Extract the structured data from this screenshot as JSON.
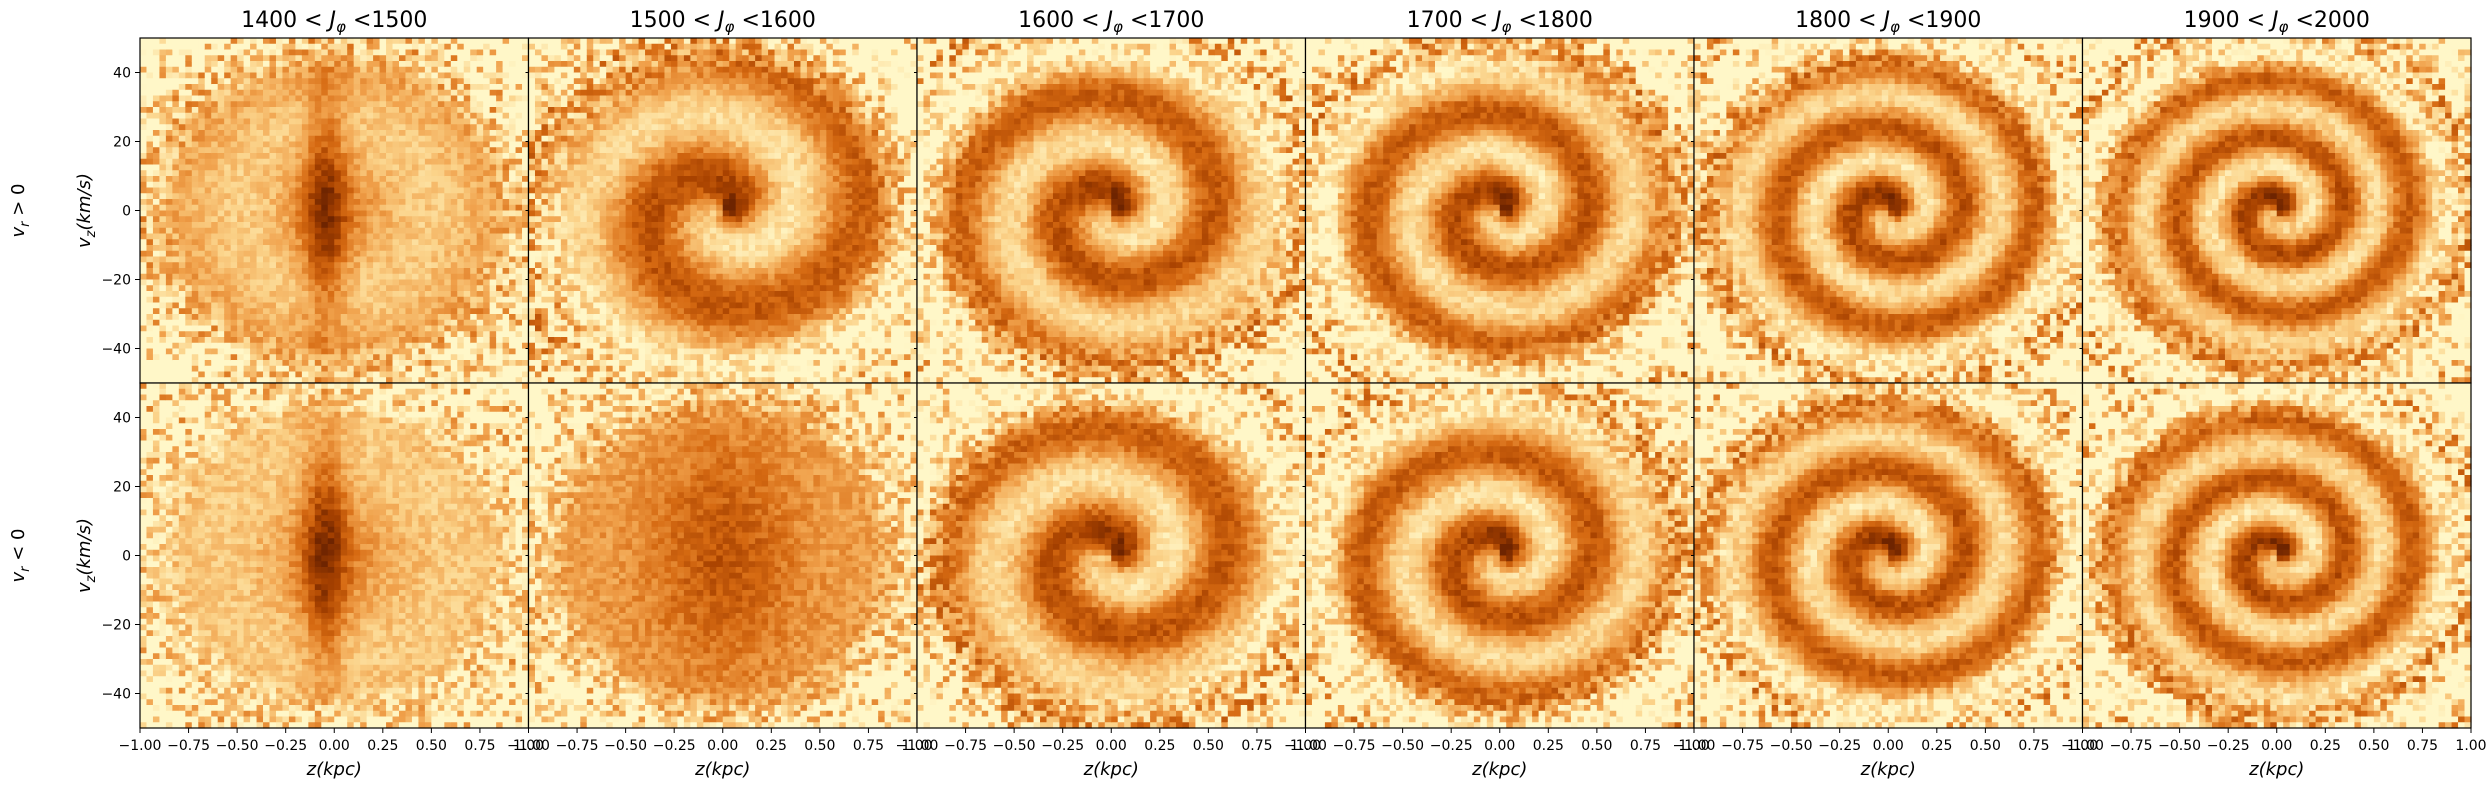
{
  "chart_data": {
    "type": "heatmap",
    "layout": {
      "rows": 2,
      "cols": 6
    },
    "column_titles": [
      "1400 < J_φ <1500",
      "1500 < J_φ <1600",
      "1600 < J_φ <1700",
      "1700 < J_φ <1800",
      "1800 < J_φ <1900",
      "1900 < J_φ <2000"
    ],
    "row_labels": [
      "v_r > 0",
      "v_r < 0"
    ],
    "xlabel": "z(kpc)",
    "ylabel": "v_z(km/s)",
    "xlim": [
      -1.0,
      1.0
    ],
    "ylim": [
      -50,
      50
    ],
    "xticks": [
      -1.0,
      -0.75,
      -0.5,
      -0.25,
      0.0,
      0.25,
      0.5,
      0.75,
      1.0
    ],
    "xtick_labels": [
      "−1.00",
      "−0.75",
      "−0.50",
      "−0.25",
      "0.00",
      "0.25",
      "0.50",
      "0.75",
      "1.00"
    ],
    "yticks": [
      40,
      20,
      0,
      -20,
      -40
    ],
    "ytick_labels": [
      "40",
      "20",
      "0",
      "−20",
      "−40"
    ],
    "colormap": [
      "#fff7c8",
      "#fbd38a",
      "#f0a04a",
      "#d66a12",
      "#a84200",
      "#6e2400"
    ],
    "panels": [
      {
        "row": 0,
        "col": 0,
        "feature": "vertical-band",
        "turns": 1.0
      },
      {
        "row": 0,
        "col": 1,
        "feature": "spiral",
        "turns": 1.3
      },
      {
        "row": 0,
        "col": 2,
        "feature": "spiral",
        "turns": 1.8
      },
      {
        "row": 0,
        "col": 3,
        "feature": "spiral",
        "turns": 2.1
      },
      {
        "row": 0,
        "col": 4,
        "feature": "spiral",
        "turns": 2.5
      },
      {
        "row": 0,
        "col": 5,
        "feature": "spiral",
        "turns": 2.8
      },
      {
        "row": 1,
        "col": 0,
        "feature": "vertical-band",
        "turns": 0.8
      },
      {
        "row": 1,
        "col": 1,
        "feature": "diffuse",
        "turns": 1.0
      },
      {
        "row": 1,
        "col": 2,
        "feature": "spiral",
        "turns": 1.6
      },
      {
        "row": 1,
        "col": 3,
        "feature": "spiral",
        "turns": 2.0
      },
      {
        "row": 1,
        "col": 4,
        "feature": "spiral",
        "turns": 2.4
      },
      {
        "row": 1,
        "col": 5,
        "feature": "spiral",
        "turns": 2.7
      }
    ]
  }
}
